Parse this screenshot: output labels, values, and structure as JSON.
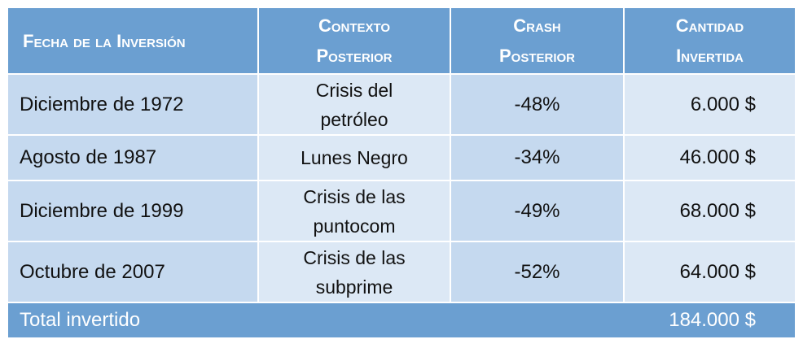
{
  "table": {
    "headers": {
      "date": "Fecha de la Inversión",
      "context": [
        "Contexto",
        "Posterior"
      ],
      "crash": [
        "Crash",
        "Posterior"
      ],
      "amount": [
        "Cantidad",
        "Invertida"
      ]
    },
    "rows": [
      {
        "date": "Diciembre de 1972",
        "context": [
          "Crisis del",
          "petróleo"
        ],
        "crash": "-48%",
        "amount": "6.000 $"
      },
      {
        "date": "Agosto de 1987",
        "context": [
          "Lunes Negro"
        ],
        "crash": "-34%",
        "amount": "46.000 $"
      },
      {
        "date": "Diciembre de 1999",
        "context": [
          "Crisis de las",
          "puntocom"
        ],
        "crash": "-49%",
        "amount": "68.000 $"
      },
      {
        "date": "Octubre de 2007",
        "context": [
          "Crisis de las",
          "subprime"
        ],
        "crash": "-52%",
        "amount": "64.000 $"
      }
    ],
    "total": {
      "label": "Total invertido",
      "amount": "184.000 $"
    }
  },
  "colors": {
    "header_bg": "#6b9fd1",
    "cell_dark": "#c5d9ef",
    "cell_light": "#dce8f5"
  }
}
